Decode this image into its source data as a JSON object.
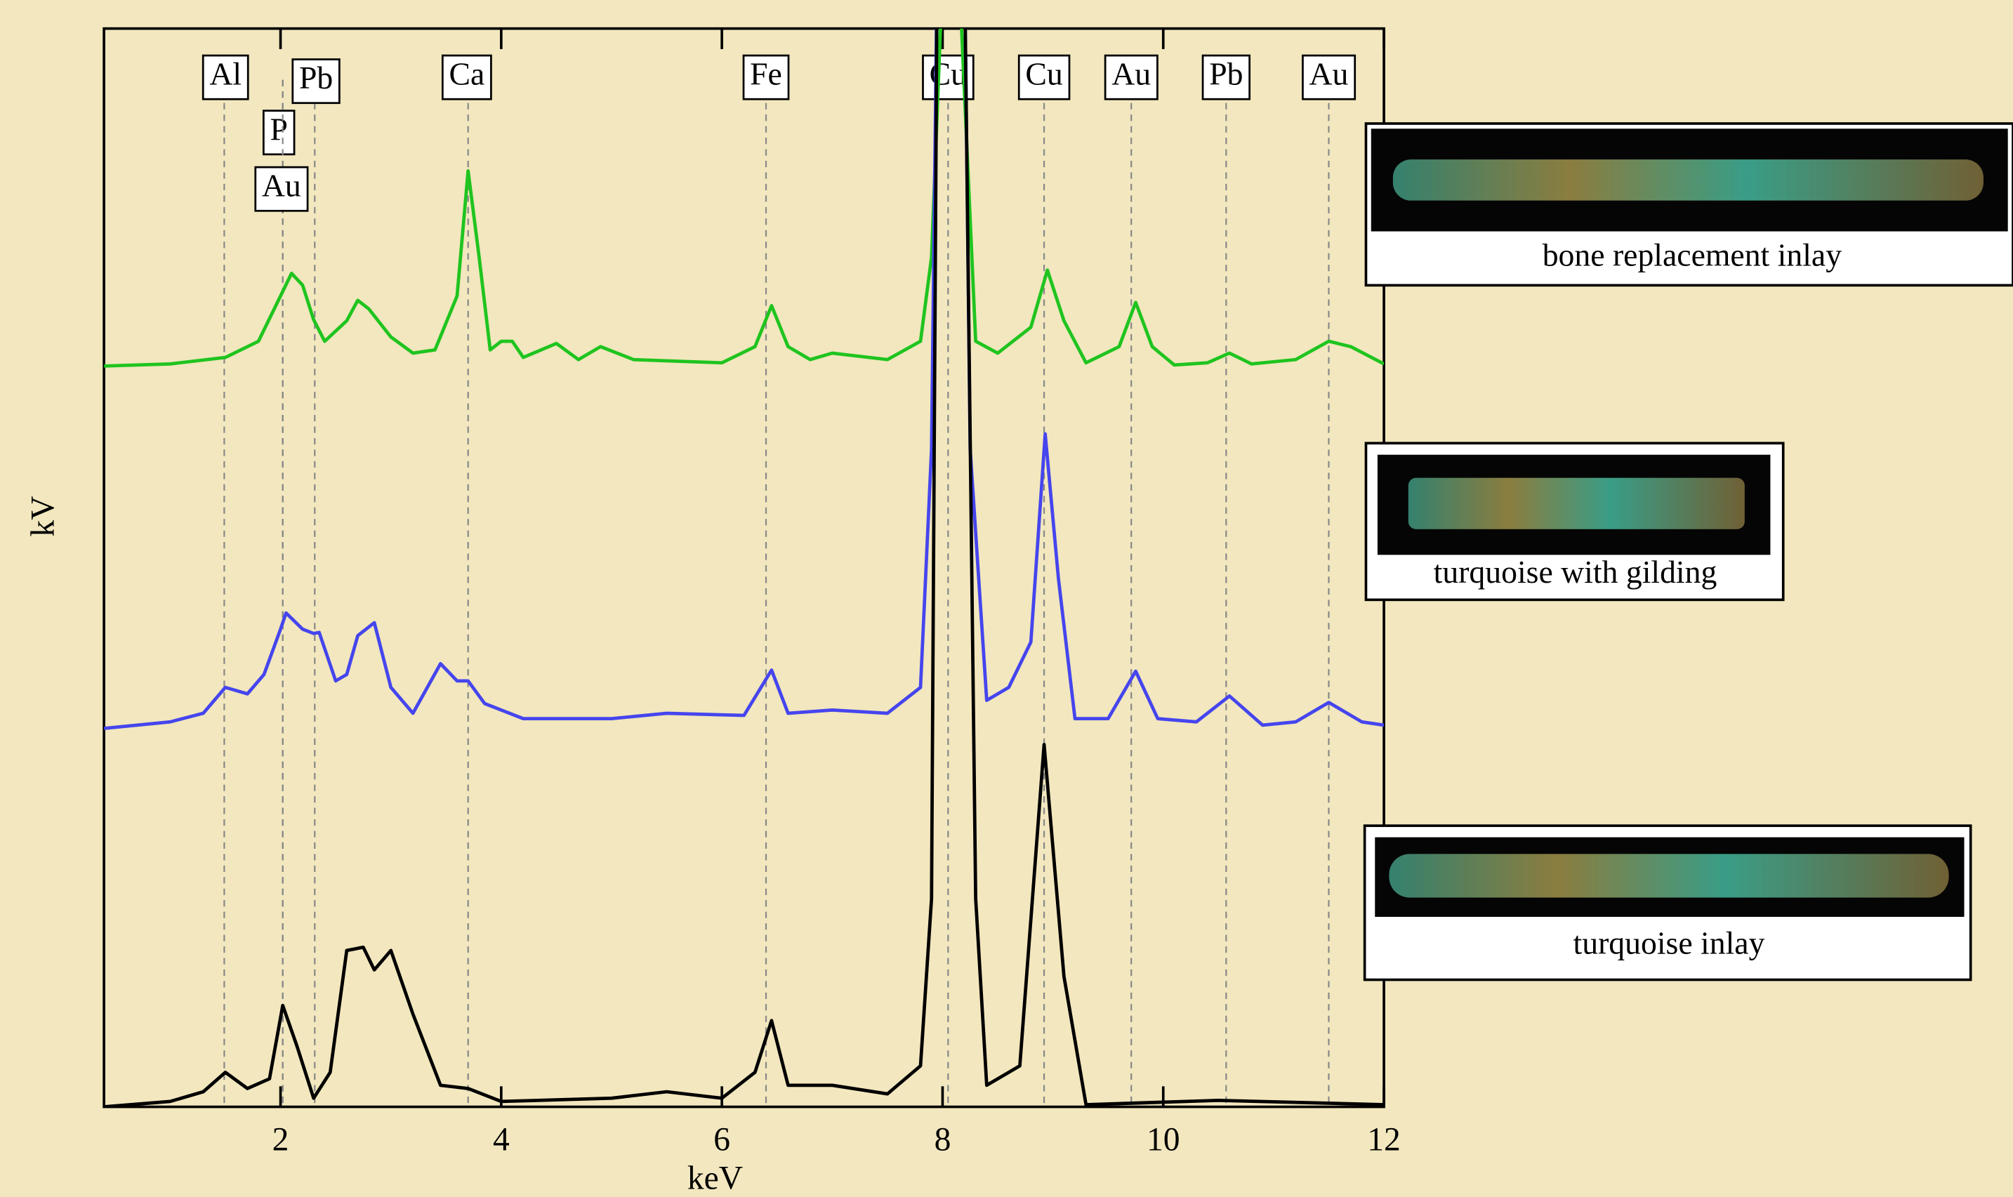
{
  "chart_data": {
    "type": "line",
    "x_label": "keV",
    "y_label": "kV",
    "xlim": [
      0.4,
      12
    ],
    "ylim": [
      0,
      100
    ],
    "xticks": [
      2,
      4,
      6,
      8,
      10,
      12
    ],
    "series": [
      {
        "name": "bone replacement inlay",
        "color": "#1fc41f",
        "x": [
          0.4,
          1.0,
          1.5,
          1.8,
          2.0,
          2.1,
          2.2,
          2.3,
          2.4,
          2.6,
          2.7,
          2.8,
          3.0,
          3.2,
          3.4,
          3.6,
          3.7,
          3.8,
          3.9,
          4.0,
          4.1,
          4.2,
          4.5,
          4.7,
          4.9,
          5.2,
          6.0,
          6.3,
          6.45,
          6.6,
          6.8,
          7.0,
          7.5,
          7.8,
          7.9,
          8.0,
          8.15,
          8.3,
          8.5,
          8.8,
          8.95,
          9.1,
          9.3,
          9.6,
          9.75,
          9.9,
          10.1,
          10.4,
          10.6,
          10.8,
          11.2,
          11.5,
          11.7,
          12.0
        ],
        "values": [
          68.7,
          68.9,
          69.5,
          71,
          75.2,
          77.3,
          76.2,
          73,
          71,
          72.9,
          74.8,
          74,
          71.4,
          69.9,
          70.2,
          75.2,
          86.8,
          78.8,
          70.2,
          71,
          71,
          69.5,
          70.8,
          69.3,
          70.5,
          69.3,
          69,
          70.5,
          74.3,
          70.5,
          69.3,
          69.9,
          69.3,
          71,
          78.8,
          105,
          105,
          71,
          69.9,
          72.3,
          77.6,
          72.9,
          69,
          70.5,
          74.6,
          70.5,
          68.8,
          69,
          69.9,
          68.9,
          69.3,
          71,
          70.5,
          68.9
        ]
      },
      {
        "name": "turquoise with gilding",
        "color": "#4545ee",
        "x": [
          0.4,
          1.0,
          1.3,
          1.5,
          1.7,
          1.85,
          2.0,
          2.05,
          2.2,
          2.3,
          2.35,
          2.5,
          2.6,
          2.7,
          2.85,
          3.0,
          3.2,
          3.45,
          3.6,
          3.7,
          3.85,
          4.2,
          5.0,
          5.5,
          6.2,
          6.45,
          6.6,
          7.0,
          7.5,
          7.8,
          7.9,
          7.95,
          8.2,
          8.25,
          8.4,
          8.6,
          8.8,
          8.93,
          9.05,
          9.2,
          9.5,
          9.75,
          9.95,
          10.3,
          10.6,
          10.9,
          11.2,
          11.5,
          11.8,
          12.0
        ],
        "values": [
          35.1,
          35.7,
          36.5,
          38.9,
          38.3,
          40.1,
          44.3,
          45.8,
          44.3,
          43.9,
          44,
          39.5,
          40.1,
          43.7,
          44.9,
          38.9,
          36.5,
          41.1,
          39.5,
          39.5,
          37.4,
          36,
          36,
          36.5,
          36.3,
          40.5,
          36.5,
          36.8,
          36.5,
          38.9,
          61,
          105,
          105,
          61,
          37.7,
          38.9,
          43.1,
          62.4,
          49,
          36,
          36,
          40.4,
          36,
          35.7,
          38.1,
          35.4,
          35.7,
          37.5,
          35.7,
          35.4
        ]
      },
      {
        "name": "turquoise inlay",
        "color": "#000000",
        "x": [
          0.4,
          1.0,
          1.3,
          1.5,
          1.7,
          1.9,
          2.02,
          2.15,
          2.3,
          2.45,
          2.6,
          2.75,
          2.85,
          3.0,
          3.2,
          3.45,
          3.7,
          4.0,
          5.0,
          5.5,
          6.0,
          6.3,
          6.45,
          6.6,
          7.0,
          7.5,
          7.8,
          7.9,
          7.95,
          8.2,
          8.3,
          8.4,
          8.7,
          8.92,
          9.1,
          9.3,
          10.5,
          12.0
        ],
        "values": [
          0,
          0.5,
          1.4,
          3.2,
          1.7,
          2.6,
          9.4,
          5.6,
          0.8,
          3.2,
          14.5,
          14.8,
          12.7,
          14.5,
          8.6,
          2,
          1.7,
          0.5,
          0.8,
          1.4,
          0.8,
          3.2,
          8,
          2,
          2,
          1.2,
          3.8,
          19.3,
          105,
          105,
          19.3,
          2,
          3.8,
          33.6,
          12.1,
          0.2,
          0.6,
          0.2
        ]
      }
    ],
    "reference_lines": [
      {
        "label": "Al",
        "x": 1.49
      },
      {
        "label": "P",
        "x": 2.02
      },
      {
        "label": "Au",
        "x": 2.02
      },
      {
        "label": "Pb",
        "x": 2.31
      },
      {
        "label": "Ca",
        "x": 3.7
      },
      {
        "label": "Fe",
        "x": 6.4
      },
      {
        "label": "Cu",
        "x": 8.05
      },
      {
        "label": "Cu",
        "x": 8.92
      },
      {
        "label": "Au",
        "x": 9.71
      },
      {
        "label": "Pb",
        "x": 10.57
      },
      {
        "label": "Au",
        "x": 11.5
      }
    ]
  }
}
